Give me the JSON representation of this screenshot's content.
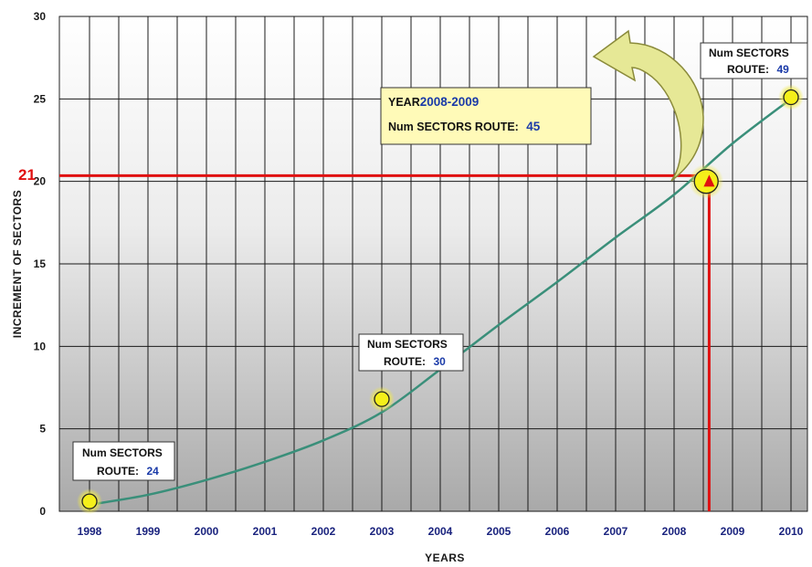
{
  "chart_data": {
    "type": "line",
    "title": "",
    "xlabel": "YEARS",
    "ylabel": "INCREMENT OF SECTORS",
    "ylim": [
      0,
      30
    ],
    "yticks": [
      "0",
      "5",
      "10",
      "15",
      "20",
      "25",
      "30"
    ],
    "categories": [
      "1998",
      "1999",
      "2000",
      "2001",
      "2002",
      "2003",
      "2004",
      "2005",
      "2006",
      "2007",
      "2008",
      "2009",
      "2010"
    ],
    "grid": true,
    "series": [
      {
        "values": [
          0.4,
          1.0,
          1.9,
          3.0,
          4.3,
          6.0,
          8.6,
          11.3,
          13.9,
          16.6,
          19.2,
          22.3,
          25.0
        ],
        "color": "#3a8f7a"
      }
    ],
    "markers": [
      {
        "x": 1998.0,
        "y": 0.6
      },
      {
        "x": 2003.0,
        "y": 6.8
      },
      {
        "x": 2008.55,
        "y": 20.0
      },
      {
        "x": 2010.0,
        "y": 25.1
      }
    ],
    "reference": {
      "x": 2008.6,
      "y": 20.35,
      "label": "21",
      "color": "#e01010"
    },
    "colors": {
      "marker_fill": "#f5ef1a",
      "marker_glow": "#f0e94a",
      "highlight_box": "#fffab8",
      "arrow": "#e6e896",
      "value_text": "#1a3aa8"
    }
  },
  "callouts": {
    "c1998": {
      "line1": "Num SECTORS",
      "route_label": "ROUTE:",
      "route_value": "24"
    },
    "c2003": {
      "line1": "Num SECTORS",
      "route_label": "ROUTE:",
      "route_value": "30"
    },
    "c2010": {
      "line1": "Num SECTORS",
      "route_label": "ROUTE:",
      "route_value": "49"
    }
  },
  "highlight": {
    "year_label": "YEAR",
    "year_value": "2008-2009",
    "sectors_label": "Num SECTORS ROUTE:",
    "sectors_value": "45"
  }
}
